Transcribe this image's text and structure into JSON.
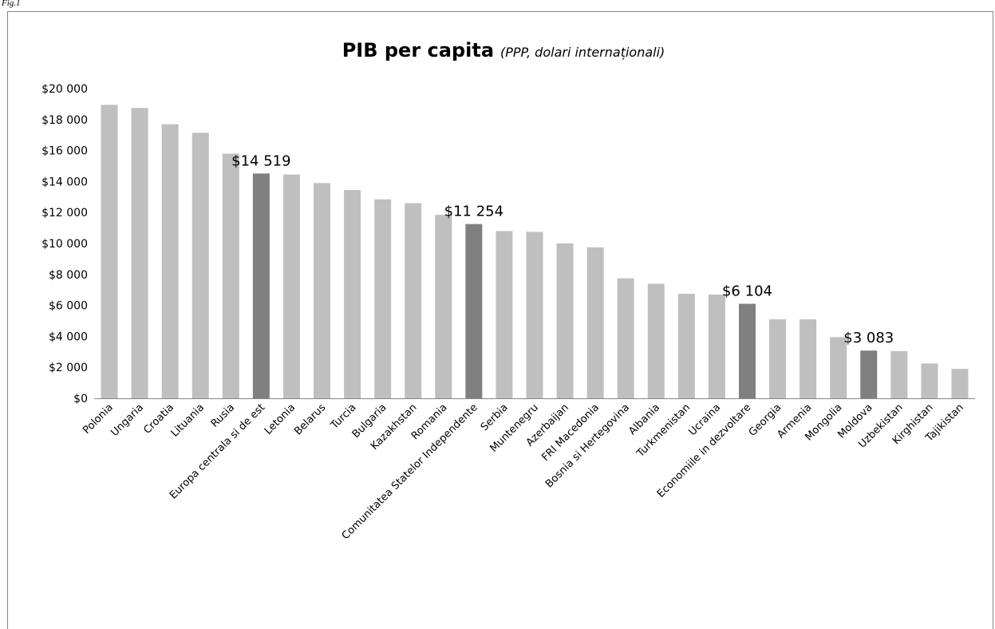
{
  "figure": {
    "label": "Fig.1"
  },
  "colors": {
    "bar": "#bfbfbf",
    "highlight": "#808080",
    "axis": "#868686",
    "frame": "#868686"
  },
  "chart_data": {
    "type": "bar",
    "title": "PIB per capita",
    "subtitle": "(PPP, dolari internaționali)",
    "xlabel": "",
    "ylabel": "",
    "ylim": [
      0,
      20000
    ],
    "grid": false,
    "legend": "none",
    "ytick_labels": [
      "$0",
      "$2 000",
      "$4 000",
      "$6 000",
      "$8 000",
      "$10 000",
      "$12 000",
      "$14 000",
      "$16 000",
      "$18 000",
      "$20 000"
    ],
    "categories": [
      "Polonia",
      "Ungaria",
      "Croatia",
      "Lituania",
      "Rusia",
      "Europa centrala si de est",
      "Letonia",
      "Belarus",
      "Turcia",
      "Bulgaria",
      "Kazakhstan",
      "Romania",
      "Comunitatea Statelor Independente",
      "Serbia",
      "Muntenegru",
      "Azerbaijan",
      "FRI Macedonia",
      "Bosnia si Hertegovina",
      "Albania",
      "Turkmenistan",
      "Ucraina",
      "Economiile in dezvoltare",
      "Georgia",
      "Armenia",
      "Mongolia",
      "Moldova",
      "Uzbekistan",
      "Kirghistan",
      "Tajikistan"
    ],
    "values": [
      18950,
      18750,
      17700,
      17150,
      15800,
      14519,
      14450,
      13900,
      13450,
      12850,
      12600,
      11850,
      11254,
      10800,
      10750,
      10000,
      9750,
      7750,
      7400,
      6750,
      6700,
      6104,
      5100,
      5100,
      3950,
      3083,
      3050,
      2250,
      1900
    ],
    "highlighted": [
      "Europa centrala si de est",
      "Comunitatea Statelor Independente",
      "Economiile in dezvoltare",
      "Moldova"
    ],
    "data_labels": [
      {
        "category": "Europa centrala si de est",
        "text": "$14 519"
      },
      {
        "category": "Comunitatea Statelor Independente",
        "text": "$11 254"
      },
      {
        "category": "Economiile in dezvoltare",
        "text": "$6 104"
      },
      {
        "category": "Moldova",
        "text": "$3 083"
      }
    ]
  }
}
